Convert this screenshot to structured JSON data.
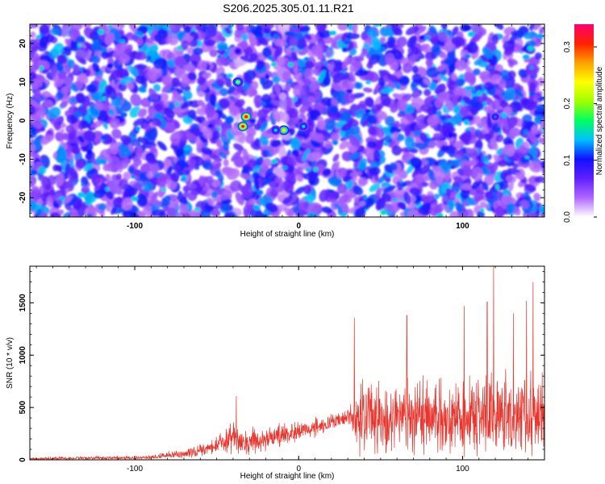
{
  "title": "S206.2025.305.01.11.R21",
  "chart_data": [
    {
      "type": "heatmap",
      "xlabel": "Height of straight line (km)",
      "ylabel": "Frequency (Hz)",
      "xlim": [
        -164,
        150
      ],
      "ylim": [
        -25,
        25
      ],
      "xticks": [
        -100,
        0,
        100
      ],
      "yticks": [
        -20,
        -10,
        0,
        10,
        20
      ],
      "colorbar": {
        "label": "Normalized spectral amplitude",
        "range": [
          0.0,
          0.34
        ],
        "ticks": [
          0.0,
          0.1,
          0.2,
          0.3
        ],
        "colors": [
          "#ffffff",
          "#b066ff",
          "#6020ff",
          "#1010ff",
          "#00c0ff",
          "#00ff60",
          "#a0ff00",
          "#ffff00",
          "#ffa000",
          "#ff2000",
          "#ff0070"
        ]
      },
      "hotspots": [
        {
          "x": -32,
          "y": 1,
          "value": 0.34
        },
        {
          "x": -34,
          "y": -1.5,
          "value": 0.33
        },
        {
          "x": -9,
          "y": -2.5,
          "value": 0.25
        },
        {
          "x": -14,
          "y": -2.5,
          "value": 0.15
        },
        {
          "x": 3,
          "y": -1.5,
          "value": 0.15
        },
        {
          "x": -37,
          "y": 10,
          "value": 0.2
        },
        {
          "x": -37,
          "y": 18,
          "value": 0.1
        },
        {
          "x": 120,
          "y": 1,
          "value": 0.12
        }
      ]
    },
    {
      "type": "line",
      "xlabel": "Height of straight line (km)",
      "ylabel": "SNR (10 * v/v)",
      "xlim": [
        -164,
        150
      ],
      "ylim": [
        0,
        1850
      ],
      "xticks": [
        -100,
        0,
        100
      ],
      "yticks": [
        0,
        500,
        1000,
        1500
      ],
      "color": "#e8352d",
      "envelope": [
        {
          "x": -164,
          "base": 10,
          "amp": 25
        },
        {
          "x": -90,
          "base": 20,
          "amp": 35
        },
        {
          "x": -80,
          "base": 40,
          "amp": 60
        },
        {
          "x": -70,
          "base": 50,
          "amp": 80
        },
        {
          "x": -55,
          "base": 100,
          "amp": 120
        },
        {
          "x": -45,
          "base": 150,
          "amp": 200
        },
        {
          "x": -40,
          "base": 200,
          "amp": 330
        },
        {
          "x": -35,
          "base": 150,
          "amp": 200
        },
        {
          "x": -25,
          "base": 170,
          "amp": 250
        },
        {
          "x": -15,
          "base": 220,
          "amp": 200
        },
        {
          "x": -5,
          "base": 250,
          "amp": 180
        },
        {
          "x": 10,
          "base": 300,
          "amp": 160
        },
        {
          "x": 25,
          "base": 380,
          "amp": 120
        },
        {
          "x": 32,
          "base": 400,
          "amp": 200
        },
        {
          "x": 35,
          "base": 360,
          "amp": 620
        },
        {
          "x": 70,
          "base": 380,
          "amp": 650
        },
        {
          "x": 100,
          "base": 400,
          "amp": 700
        },
        {
          "x": 150,
          "base": 420,
          "amp": 720
        }
      ],
      "peaks": [
        {
          "x": 119,
          "y": 1850
        },
        {
          "x": 143,
          "y": 1700
        },
        {
          "x": 139,
          "y": 1520
        },
        {
          "x": 115,
          "y": 1510
        },
        {
          "x": 101,
          "y": 1470
        },
        {
          "x": 66,
          "y": 1380
        },
        {
          "x": 34,
          "y": 1360
        },
        {
          "x": 131,
          "y": 1400
        },
        {
          "x": -38,
          "y": 610
        }
      ]
    }
  ]
}
